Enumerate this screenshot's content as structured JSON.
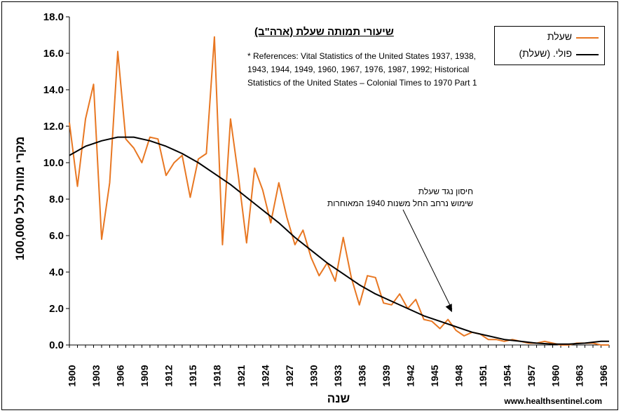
{
  "chart_data": {
    "type": "line",
    "title": "שיעורי תמותה שעלת (ארה\"ב)",
    "references": "* References: Vital Statistics of the United States 1937, 1938, 1943, 1944, 1949, 1960, 1967, 1976, 1987, 1992; Historical Statistics of the United States – Colonial Times to 1970 Part 1",
    "annotation": {
      "line1": "חיסון נגד שעלת",
      "line2": "שימוש נרחב החל משנות 1940 המאוחרות",
      "arrow_target": [
        1947.5,
        1.8
      ]
    },
    "xlabel": "שנה",
    "ylabel": "מקרי מוות לכל 100,000",
    "source": "www.healthsentinel.com",
    "xlim": [
      1900,
      1967
    ],
    "ylim": [
      0,
      18
    ],
    "y_ticks": [
      "0.0",
      "2.0",
      "4.0",
      "6.0",
      "8.0",
      "10.0",
      "12.0",
      "14.0",
      "16.0",
      "18.0"
    ],
    "x_ticks": [
      "1900",
      "1903",
      "1906",
      "1909",
      "1912",
      "1915",
      "1918",
      "1921",
      "1924",
      "1927",
      "1930",
      "1933",
      "1936",
      "1939",
      "1942",
      "1945",
      "1948",
      "1951",
      "1954",
      "1957",
      "1960",
      "1963",
      "1966"
    ],
    "legend_position": "top-right",
    "series": [
      {
        "name": "שעלת",
        "color": "#E87722",
        "x": [
          1900,
          1901,
          1902,
          1903,
          1904,
          1905,
          1906,
          1907,
          1908,
          1909,
          1910,
          1911,
          1912,
          1913,
          1914,
          1915,
          1916,
          1917,
          1918,
          1919,
          1920,
          1921,
          1922,
          1923,
          1924,
          1925,
          1926,
          1927,
          1928,
          1929,
          1930,
          1931,
          1932,
          1933,
          1934,
          1935,
          1936,
          1937,
          1938,
          1939,
          1940,
          1941,
          1942,
          1943,
          1944,
          1945,
          1946,
          1947,
          1948,
          1949,
          1950,
          1951,
          1952,
          1953,
          1954,
          1955,
          1956,
          1957,
          1958,
          1959,
          1960,
          1961,
          1962,
          1963,
          1964,
          1965,
          1966,
          1967
        ],
        "values": [
          12.2,
          8.7,
          12.4,
          14.3,
          5.8,
          8.9,
          16.1,
          11.3,
          10.8,
          10.0,
          11.4,
          11.3,
          9.3,
          10.0,
          10.4,
          8.1,
          10.2,
          10.5,
          16.9,
          5.5,
          12.4,
          9.2,
          5.6,
          9.7,
          8.5,
          6.7,
          8.9,
          7.0,
          5.5,
          6.3,
          4.8,
          3.8,
          4.5,
          3.5,
          5.9,
          3.7,
          2.2,
          3.8,
          3.7,
          2.3,
          2.2,
          2.8,
          2.0,
          2.5,
          1.4,
          1.3,
          0.9,
          1.4,
          0.8,
          0.5,
          0.7,
          0.6,
          0.3,
          0.3,
          0.2,
          0.3,
          0.2,
          0.1,
          0.1,
          0.2,
          0.1,
          0.0,
          0.0,
          0.1,
          0.1,
          0.1,
          0.0,
          0.0
        ]
      },
      {
        "name": "פולי. (שעלת)",
        "color": "#000000",
        "x": [
          1900,
          1902,
          1904,
          1906,
          1908,
          1910,
          1912,
          1914,
          1916,
          1918,
          1920,
          1922,
          1924,
          1926,
          1928,
          1930,
          1932,
          1934,
          1936,
          1938,
          1940,
          1942,
          1944,
          1946,
          1948,
          1950,
          1952,
          1954,
          1956,
          1958,
          1960,
          1962,
          1964,
          1966,
          1967
        ],
        "values": [
          10.4,
          10.9,
          11.2,
          11.4,
          11.4,
          11.2,
          10.9,
          10.5,
          10.0,
          9.4,
          8.8,
          8.1,
          7.4,
          6.7,
          5.9,
          5.2,
          4.5,
          3.9,
          3.3,
          2.8,
          2.4,
          2.0,
          1.6,
          1.3,
          1.0,
          0.7,
          0.5,
          0.3,
          0.2,
          0.1,
          0.05,
          0.05,
          0.1,
          0.2,
          0.2
        ]
      }
    ]
  }
}
